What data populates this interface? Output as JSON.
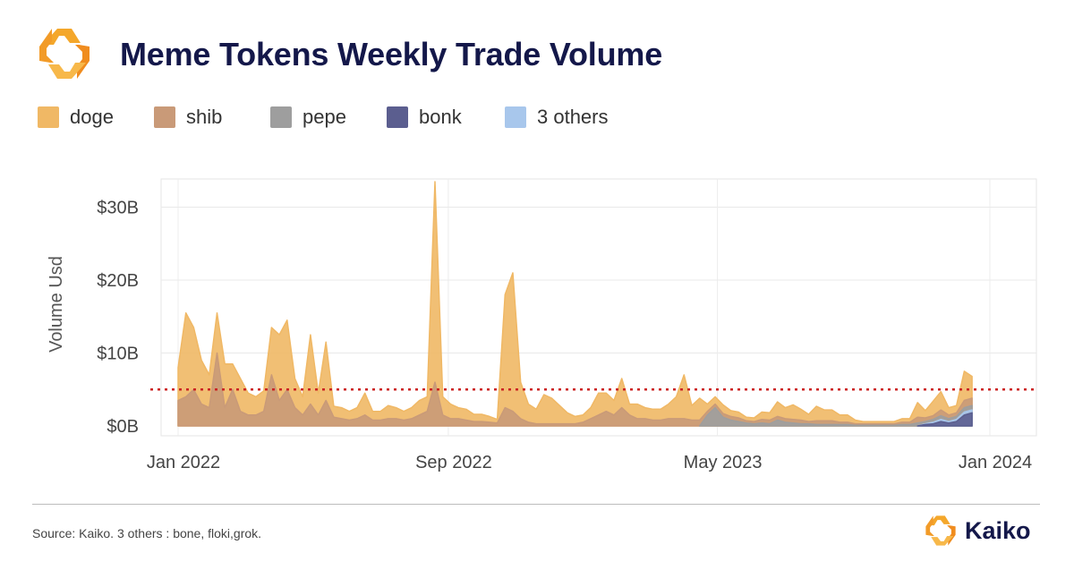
{
  "header": {
    "title": "Meme Tokens Weekly Trade Volume"
  },
  "footer": {
    "source": "Source: Kaiko. 3 others : bone, floki,grok.",
    "brand": "Kaiko"
  },
  "colors": {
    "doge": "#f0b865",
    "shib": "#c99a78",
    "pepe": "#9e9e9e",
    "bonk": "#5b5e8f",
    "others": "#a8c7ec",
    "reference": "#cc2222",
    "title": "#14184a",
    "logo": "#f4a72b"
  },
  "icons": {
    "logo": "kaiko-logo-icon"
  },
  "chart_data": {
    "type": "area",
    "stacked": true,
    "ylabel": "Volume Usd",
    "xlabel": "",
    "x_ticks": [
      {
        "label": "Jan 2022",
        "date": "2022-01-01"
      },
      {
        "label": "Sep 2022",
        "date": "2022-09-01"
      },
      {
        "label": "May 2023",
        "date": "2023-05-01"
      },
      {
        "label": "Jan 2024",
        "date": "2024-01-01"
      }
    ],
    "y_ticks": [
      {
        "label": "$0B",
        "value": 0
      },
      {
        "label": "$10B",
        "value": 10
      },
      {
        "label": "$20B",
        "value": 20
      },
      {
        "label": "$30B",
        "value": 30
      }
    ],
    "ylim": [
      0,
      35
    ],
    "xlim": [
      "2021-11-27",
      "2024-01-27"
    ],
    "reference_line": 5,
    "grid": true,
    "legend_position": "top-left",
    "legend": [
      {
        "key": "doge",
        "label": "doge"
      },
      {
        "key": "shib",
        "label": "shib"
      },
      {
        "key": "pepe",
        "label": "pepe"
      },
      {
        "key": "bonk",
        "label": "bonk"
      },
      {
        "key": "others",
        "label": "3 others"
      }
    ],
    "series": [
      {
        "key": "doge",
        "points": [
          [
            "2022-01-01",
            4.5
          ],
          [
            "2022-01-08",
            11.5
          ],
          [
            "2022-01-15",
            8.5
          ],
          [
            "2022-01-22",
            6
          ],
          [
            "2022-01-29",
            4.5
          ],
          [
            "2022-02-05",
            5.5
          ],
          [
            "2022-02-12",
            6
          ],
          [
            "2022-02-19",
            3.5
          ],
          [
            "2022-02-26",
            4.5
          ],
          [
            "2022-03-05",
            3
          ],
          [
            "2022-03-12",
            2.5
          ],
          [
            "2022-03-19",
            2.8
          ],
          [
            "2022-03-26",
            6.5
          ],
          [
            "2022-04-02",
            9
          ],
          [
            "2022-04-09",
            9.5
          ],
          [
            "2022-04-16",
            4
          ],
          [
            "2022-04-23",
            2.5
          ],
          [
            "2022-04-30",
            9.5
          ],
          [
            "2022-05-07",
            3
          ],
          [
            "2022-05-14",
            8
          ],
          [
            "2022-05-21",
            1.5
          ],
          [
            "2022-05-28",
            1.5
          ],
          [
            "2022-06-04",
            1.2
          ],
          [
            "2022-06-11",
            1.5
          ],
          [
            "2022-06-18",
            3
          ],
          [
            "2022-06-25",
            1.2
          ],
          [
            "2022-07-02",
            1.2
          ],
          [
            "2022-07-09",
            1.8
          ],
          [
            "2022-07-16",
            1.5
          ],
          [
            "2022-07-23",
            1.2
          ],
          [
            "2022-07-30",
            1.5
          ],
          [
            "2022-08-06",
            2
          ],
          [
            "2022-08-13",
            2
          ],
          [
            "2022-08-20",
            27.5
          ],
          [
            "2022-08-27",
            2.5
          ],
          [
            "2022-09-03",
            2
          ],
          [
            "2022-09-10",
            1.5
          ],
          [
            "2022-09-17",
            1.5
          ],
          [
            "2022-09-24",
            1
          ],
          [
            "2022-10-01",
            1
          ],
          [
            "2022-10-08",
            0.8
          ],
          [
            "2022-10-15",
            0.5
          ],
          [
            "2022-10-22",
            15.5
          ],
          [
            "2022-10-29",
            19
          ],
          [
            "2022-11-05",
            5
          ],
          [
            "2022-11-12",
            2.5
          ],
          [
            "2022-11-19",
            2
          ],
          [
            "2022-11-26",
            4
          ],
          [
            "2022-12-03",
            3.5
          ],
          [
            "2022-12-10",
            2.5
          ],
          [
            "2022-12-17",
            1.5
          ],
          [
            "2022-12-24",
            1
          ],
          [
            "2022-12-31",
            1
          ],
          [
            "2023-01-07",
            1.5
          ],
          [
            "2023-01-14",
            3
          ],
          [
            "2023-01-21",
            2.5
          ],
          [
            "2023-01-28",
            2
          ],
          [
            "2023-02-04",
            4
          ],
          [
            "2023-02-11",
            1.5
          ],
          [
            "2023-02-18",
            2
          ],
          [
            "2023-02-25",
            1.5
          ],
          [
            "2023-03-04",
            1.5
          ],
          [
            "2023-03-11",
            1.5
          ],
          [
            "2023-03-18",
            2
          ],
          [
            "2023-03-25",
            3
          ],
          [
            "2023-04-01",
            6
          ],
          [
            "2023-04-08",
            2
          ],
          [
            "2023-04-15",
            3
          ],
          [
            "2023-04-22",
            1
          ],
          [
            "2023-04-29",
            1
          ],
          [
            "2023-05-06",
            1.2
          ],
          [
            "2023-05-13",
            0.8
          ],
          [
            "2023-05-20",
            0.8
          ],
          [
            "2023-05-27",
            0.5
          ],
          [
            "2023-06-03",
            0.5
          ],
          [
            "2023-06-10",
            1
          ],
          [
            "2023-06-17",
            1
          ],
          [
            "2023-06-24",
            2
          ],
          [
            "2023-07-01",
            1.5
          ],
          [
            "2023-07-08",
            2
          ],
          [
            "2023-07-15",
            1.5
          ],
          [
            "2023-07-22",
            1
          ],
          [
            "2023-07-29",
            2
          ],
          [
            "2023-08-05",
            1.5
          ],
          [
            "2023-08-12",
            1.5
          ],
          [
            "2023-08-19",
            1
          ],
          [
            "2023-08-26",
            1
          ],
          [
            "2023-09-02",
            0.5
          ],
          [
            "2023-09-09",
            0.3
          ],
          [
            "2023-09-16",
            0.3
          ],
          [
            "2023-09-23",
            0.3
          ],
          [
            "2023-09-30",
            0.3
          ],
          [
            "2023-10-07",
            0.3
          ],
          [
            "2023-10-14",
            0.5
          ],
          [
            "2023-10-21",
            0.5
          ],
          [
            "2023-10-28",
            2
          ],
          [
            "2023-11-04",
            1
          ],
          [
            "2023-11-11",
            2
          ],
          [
            "2023-11-18",
            2.5
          ],
          [
            "2023-11-25",
            1
          ],
          [
            "2023-12-02",
            1
          ],
          [
            "2023-12-09",
            4
          ],
          [
            "2023-12-16",
            3
          ]
        ]
      },
      {
        "key": "shib",
        "points": [
          [
            "2022-01-01",
            3.5
          ],
          [
            "2022-01-08",
            4
          ],
          [
            "2022-01-15",
            5
          ],
          [
            "2022-01-22",
            3
          ],
          [
            "2022-01-29",
            2.5
          ],
          [
            "2022-02-05",
            10
          ],
          [
            "2022-02-12",
            2.5
          ],
          [
            "2022-02-19",
            5
          ],
          [
            "2022-02-26",
            2
          ],
          [
            "2022-03-05",
            1.5
          ],
          [
            "2022-03-12",
            1.5
          ],
          [
            "2022-03-19",
            2
          ],
          [
            "2022-03-26",
            7
          ],
          [
            "2022-04-02",
            3.5
          ],
          [
            "2022-04-09",
            5
          ],
          [
            "2022-04-16",
            2.5
          ],
          [
            "2022-04-23",
            1.5
          ],
          [
            "2022-04-30",
            3
          ],
          [
            "2022-05-07",
            1.5
          ],
          [
            "2022-05-14",
            3.5
          ],
          [
            "2022-05-21",
            1.2
          ],
          [
            "2022-05-28",
            1
          ],
          [
            "2022-06-04",
            0.8
          ],
          [
            "2022-06-11",
            1
          ],
          [
            "2022-06-18",
            1.5
          ],
          [
            "2022-06-25",
            0.8
          ],
          [
            "2022-07-02",
            0.8
          ],
          [
            "2022-07-09",
            1
          ],
          [
            "2022-07-16",
            1
          ],
          [
            "2022-07-23",
            0.8
          ],
          [
            "2022-07-30",
            1
          ],
          [
            "2022-08-06",
            1.5
          ],
          [
            "2022-08-13",
            2
          ],
          [
            "2022-08-20",
            6
          ],
          [
            "2022-08-27",
            1.5
          ],
          [
            "2022-09-03",
            1
          ],
          [
            "2022-09-10",
            1
          ],
          [
            "2022-09-17",
            0.8
          ],
          [
            "2022-09-24",
            0.6
          ],
          [
            "2022-10-01",
            0.6
          ],
          [
            "2022-10-08",
            0.5
          ],
          [
            "2022-10-15",
            0.4
          ],
          [
            "2022-10-22",
            2.5
          ],
          [
            "2022-10-29",
            2
          ],
          [
            "2022-11-05",
            1
          ],
          [
            "2022-11-12",
            0.5
          ],
          [
            "2022-11-19",
            0.3
          ],
          [
            "2022-11-26",
            0.3
          ],
          [
            "2022-12-03",
            0.3
          ],
          [
            "2022-12-10",
            0.3
          ],
          [
            "2022-12-17",
            0.3
          ],
          [
            "2022-12-24",
            0.3
          ],
          [
            "2022-12-31",
            0.5
          ],
          [
            "2023-01-07",
            1
          ],
          [
            "2023-01-14",
            1.5
          ],
          [
            "2023-01-21",
            2
          ],
          [
            "2023-01-28",
            1.5
          ],
          [
            "2023-02-04",
            2.5
          ],
          [
            "2023-02-11",
            1.5
          ],
          [
            "2023-02-18",
            1
          ],
          [
            "2023-02-25",
            1
          ],
          [
            "2023-03-04",
            0.8
          ],
          [
            "2023-03-11",
            0.8
          ],
          [
            "2023-03-18",
            1
          ],
          [
            "2023-03-25",
            1
          ],
          [
            "2023-04-01",
            1
          ],
          [
            "2023-04-08",
            0.8
          ],
          [
            "2023-04-15",
            0.8
          ],
          [
            "2023-04-22",
            0.5
          ],
          [
            "2023-04-29",
            0.5
          ],
          [
            "2023-05-06",
            0.5
          ],
          [
            "2023-05-13",
            0.5
          ],
          [
            "2023-05-20",
            0.5
          ],
          [
            "2023-05-27",
            0.3
          ],
          [
            "2023-06-03",
            0.3
          ],
          [
            "2023-06-10",
            0.5
          ],
          [
            "2023-06-17",
            0.5
          ],
          [
            "2023-06-24",
            0.5
          ],
          [
            "2023-07-01",
            0.5
          ],
          [
            "2023-07-08",
            0.5
          ],
          [
            "2023-07-15",
            0.5
          ],
          [
            "2023-07-22",
            0.3
          ],
          [
            "2023-07-29",
            0.5
          ],
          [
            "2023-08-05",
            0.5
          ],
          [
            "2023-08-12",
            0.5
          ],
          [
            "2023-08-19",
            0.3
          ],
          [
            "2023-08-26",
            0.3
          ],
          [
            "2023-09-02",
            0.2
          ],
          [
            "2023-09-09",
            0.2
          ],
          [
            "2023-09-16",
            0.2
          ],
          [
            "2023-09-23",
            0.2
          ],
          [
            "2023-09-30",
            0.2
          ],
          [
            "2023-10-07",
            0.2
          ],
          [
            "2023-10-14",
            0.3
          ],
          [
            "2023-10-21",
            0.3
          ],
          [
            "2023-10-28",
            0.8
          ],
          [
            "2023-11-04",
            0.5
          ],
          [
            "2023-11-11",
            0.5
          ],
          [
            "2023-11-18",
            0.8
          ],
          [
            "2023-11-25",
            0.5
          ],
          [
            "2023-12-02",
            0.5
          ],
          [
            "2023-12-09",
            1
          ],
          [
            "2023-12-16",
            1
          ]
        ]
      },
      {
        "key": "pepe",
        "points": [
          [
            "2023-04-15",
            0
          ],
          [
            "2023-04-22",
            1.5
          ],
          [
            "2023-04-29",
            2.5
          ],
          [
            "2023-05-06",
            1.2
          ],
          [
            "2023-05-13",
            0.8
          ],
          [
            "2023-05-20",
            0.6
          ],
          [
            "2023-05-27",
            0.4
          ],
          [
            "2023-06-03",
            0.3
          ],
          [
            "2023-06-10",
            0.4
          ],
          [
            "2023-06-17",
            0.3
          ],
          [
            "2023-06-24",
            0.8
          ],
          [
            "2023-07-01",
            0.5
          ],
          [
            "2023-07-08",
            0.4
          ],
          [
            "2023-07-15",
            0.3
          ],
          [
            "2023-07-22",
            0.3
          ],
          [
            "2023-07-29",
            0.2
          ],
          [
            "2023-08-05",
            0.2
          ],
          [
            "2023-08-12",
            0.2
          ],
          [
            "2023-08-19",
            0.2
          ],
          [
            "2023-08-26",
            0.2
          ],
          [
            "2023-09-02",
            0.1
          ],
          [
            "2023-09-09",
            0.1
          ],
          [
            "2023-09-16",
            0.1
          ],
          [
            "2023-09-23",
            0.1
          ],
          [
            "2023-09-30",
            0.1
          ],
          [
            "2023-10-07",
            0.1
          ],
          [
            "2023-10-14",
            0.2
          ],
          [
            "2023-10-21",
            0.2
          ],
          [
            "2023-10-28",
            0.4
          ],
          [
            "2023-11-04",
            0.3
          ],
          [
            "2023-11-11",
            0.4
          ],
          [
            "2023-11-18",
            0.5
          ],
          [
            "2023-11-25",
            0.4
          ],
          [
            "2023-12-02",
            0.4
          ],
          [
            "2023-12-09",
            0.6
          ],
          [
            "2023-12-16",
            0.6
          ]
        ]
      },
      {
        "key": "bonk",
        "points": [
          [
            "2023-10-28",
            0
          ],
          [
            "2023-11-04",
            0.2
          ],
          [
            "2023-11-11",
            0.3
          ],
          [
            "2023-11-18",
            0.6
          ],
          [
            "2023-11-25",
            0.4
          ],
          [
            "2023-12-02",
            0.6
          ],
          [
            "2023-12-09",
            1.5
          ],
          [
            "2023-12-16",
            1.8
          ]
        ]
      },
      {
        "key": "others",
        "points": [
          [
            "2023-10-28",
            0
          ],
          [
            "2023-11-04",
            0.1
          ],
          [
            "2023-11-11",
            0.2
          ],
          [
            "2023-11-18",
            0.3
          ],
          [
            "2023-11-25",
            0.2
          ],
          [
            "2023-12-02",
            0.3
          ],
          [
            "2023-12-09",
            0.4
          ],
          [
            "2023-12-16",
            0.4
          ]
        ]
      }
    ]
  }
}
